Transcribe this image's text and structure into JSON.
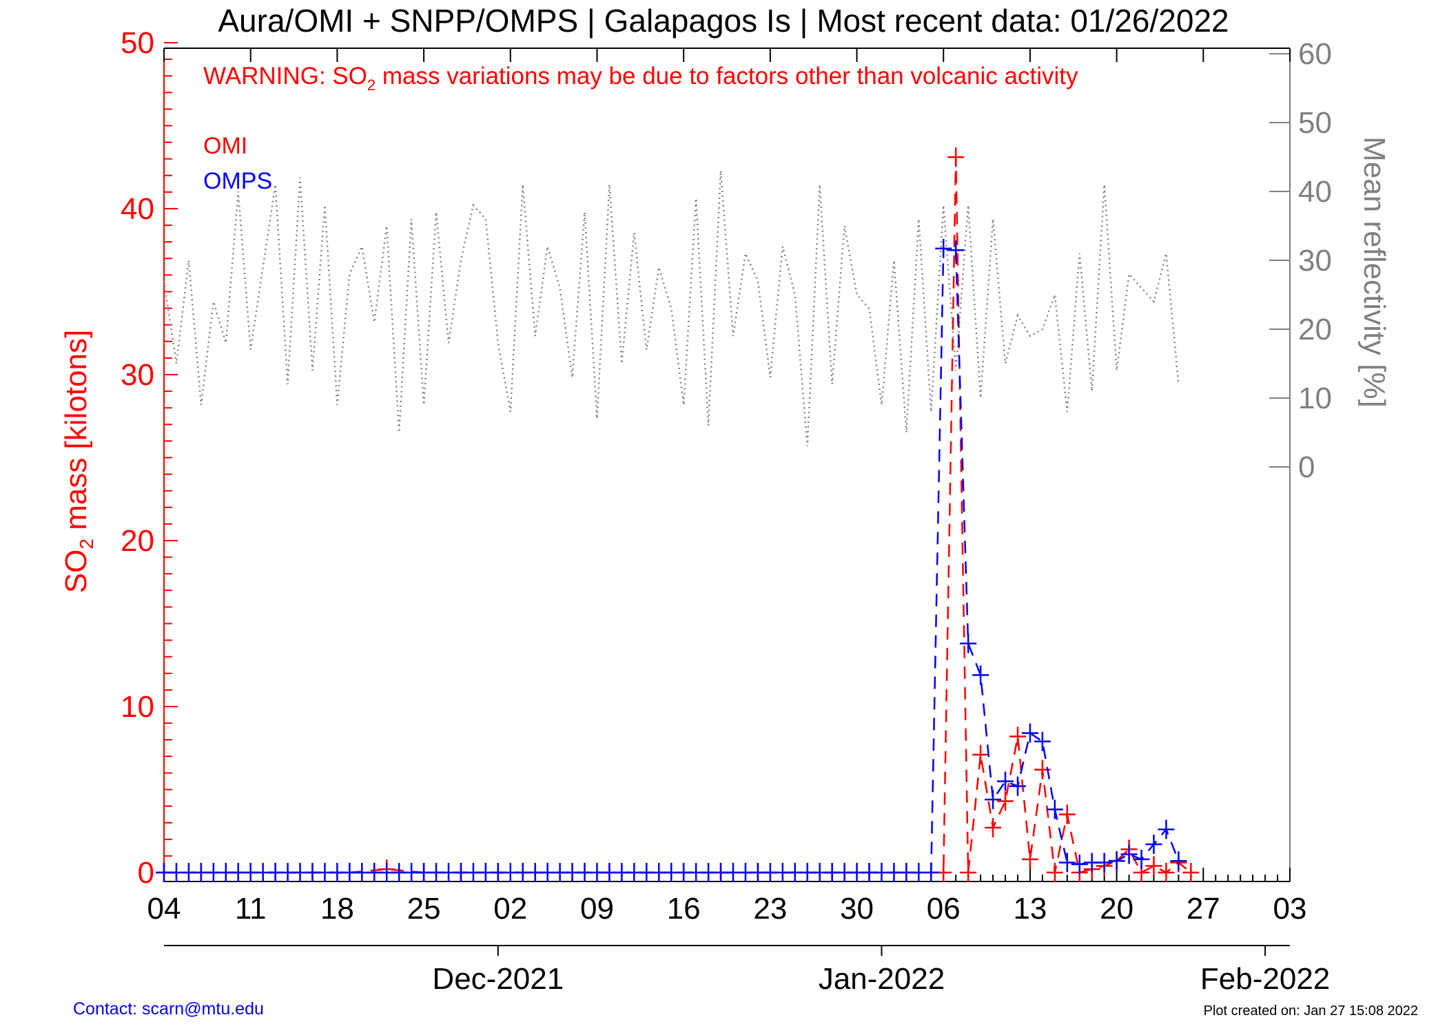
{
  "chart_data": {
    "type": "line",
    "title": "Aura/OMI + SNPP/OMPS | Galapagos Is | Most recent data: 01/26/2022",
    "warning_prefix": "WARNING: SO",
    "warning_sub": "2",
    "warning_suffix": " mass variations may be due to factors other than volcanic activity",
    "ylabel_prefix": "SO",
    "ylabel_sub": "2",
    "ylabel_suffix": " mass [kilotons]",
    "ylabel_right": "Mean reflectivity [%]",
    "ylim": [
      0,
      50
    ],
    "ylim_right": [
      -60,
      60
    ],
    "xlim": [
      "2021-11-04",
      "2022-02-03"
    ],
    "x_ticks": [
      "04",
      "11",
      "18",
      "25",
      "02",
      "09",
      "16",
      "23",
      "30",
      "06",
      "13",
      "20",
      "27",
      "03"
    ],
    "y_ticks": [
      "0",
      "10",
      "20",
      "30",
      "40",
      "50"
    ],
    "y_ticks_right": [
      "0",
      "10",
      "20",
      "30",
      "40",
      "50",
      "60"
    ],
    "month_labels": [
      "Dec-2021",
      "Jan-2022",
      "Feb-2022"
    ],
    "grid": false,
    "legend_position": "top-left",
    "colors": {
      "omi": "#ff0000",
      "omps": "#0000ff",
      "reflectivity": "#808080",
      "axis": "#000000"
    },
    "series": [
      {
        "name": "OMI",
        "day_offset": [
          0,
          3,
          6,
          9,
          12,
          15,
          18,
          21,
          24,
          27,
          30,
          33,
          36,
          39,
          42,
          45,
          48,
          51,
          54,
          57,
          60,
          63,
          64,
          65,
          66,
          67,
          68,
          69,
          70,
          71,
          72,
          73,
          74,
          75,
          76,
          77,
          78,
          79,
          80,
          81,
          82,
          83
        ],
        "values": [
          0,
          0,
          0,
          0,
          0,
          0,
          0.2,
          0,
          0,
          0,
          0,
          0,
          0,
          0,
          0,
          0,
          0,
          0,
          0,
          0,
          0,
          0,
          43.1,
          0,
          7.1,
          2.7,
          4.3,
          8.2,
          0.8,
          6.2,
          0,
          3.5,
          0,
          0.2,
          0.4,
          0.7,
          1.4,
          0,
          0.4,
          0,
          0.6,
          0
        ]
      },
      {
        "name": "OMPS",
        "day_offset": [
          0,
          1,
          2,
          3,
          4,
          5,
          6,
          7,
          8,
          9,
          10,
          11,
          12,
          13,
          14,
          15,
          16,
          17,
          18,
          19,
          20,
          21,
          22,
          23,
          24,
          25,
          26,
          27,
          28,
          29,
          30,
          31,
          32,
          33,
          34,
          35,
          36,
          37,
          38,
          39,
          40,
          41,
          42,
          43,
          44,
          45,
          46,
          47,
          48,
          49,
          50,
          51,
          52,
          53,
          54,
          55,
          56,
          57,
          58,
          59,
          60,
          61,
          62,
          63,
          64,
          65,
          66,
          67,
          68,
          69,
          70,
          71,
          72,
          73,
          74,
          75,
          76,
          77,
          78,
          79,
          80,
          81,
          82
        ],
        "values": [
          0,
          0,
          0,
          0,
          0,
          0,
          0,
          0,
          0,
          0,
          0,
          0,
          0,
          0,
          0,
          0,
          0,
          0,
          0,
          0,
          0,
          0,
          0,
          0,
          0,
          0,
          0,
          0,
          0,
          0,
          0,
          0,
          0,
          0,
          0,
          0,
          0,
          0,
          0,
          0,
          0,
          0,
          0,
          0,
          0,
          0,
          0,
          0,
          0,
          0,
          0,
          0,
          0,
          0,
          0,
          0,
          0,
          0,
          0,
          0,
          0,
          0,
          0,
          37.6,
          37.5,
          13.8,
          11.9,
          4.4,
          5.5,
          5.2,
          8.4,
          7.9,
          3.8,
          0.6,
          0.5,
          0.6,
          0.6,
          0.7,
          1.1,
          0.8,
          1.7,
          2.6,
          0.7
        ]
      },
      {
        "name": "Mean reflectivity",
        "day_offset": [
          0,
          1,
          2,
          3,
          4,
          5,
          6,
          7,
          8,
          9,
          10,
          11,
          12,
          13,
          14,
          15,
          16,
          17,
          18,
          19,
          20,
          21,
          22,
          23,
          24,
          25,
          26,
          27,
          28,
          29,
          30,
          31,
          32,
          33,
          34,
          35,
          36,
          37,
          38,
          39,
          40,
          41,
          42,
          43,
          44,
          45,
          46,
          47,
          48,
          49,
          50,
          51,
          52,
          53,
          54,
          55,
          56,
          57,
          58,
          59,
          60,
          61,
          62,
          63,
          64,
          65,
          66,
          67,
          68,
          69,
          70,
          71,
          72,
          73,
          74,
          75,
          76,
          77,
          78,
          79,
          80,
          81,
          82
        ],
        "values": [
          27,
          15,
          30,
          9,
          24,
          18,
          40,
          17,
          29,
          41,
          12,
          42,
          14,
          38,
          9,
          28,
          32,
          21,
          35,
          5,
          36,
          9,
          37,
          18,
          30,
          38,
          36,
          18,
          8,
          41,
          19,
          32,
          26,
          13,
          37,
          7,
          41,
          15,
          34,
          17,
          29,
          23,
          9,
          39,
          6,
          43,
          19,
          31,
          27,
          13,
          32,
          25,
          3,
          41,
          12,
          35,
          25,
          23,
          9,
          30,
          5,
          36,
          8,
          38,
          14,
          38,
          10,
          36,
          15,
          22,
          19,
          20,
          25,
          8,
          31,
          11,
          41,
          14,
          28,
          26,
          24,
          31,
          12
        ]
      }
    ]
  },
  "footer": {
    "contact": "Contact: scarn@mtu.edu",
    "created": "Plot created on: Jan 27 15:08 2022"
  }
}
